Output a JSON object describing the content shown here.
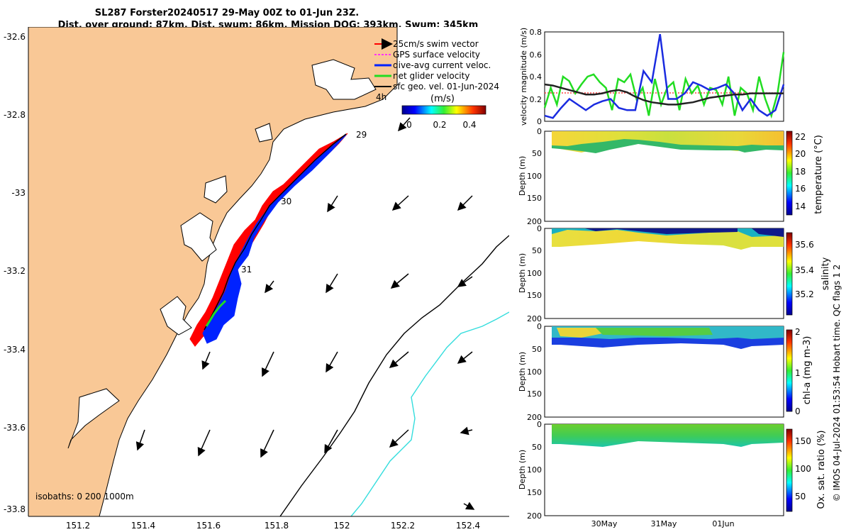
{
  "title": {
    "line1": "SL287 Forster20240517 29-May 00Z to 01-Jun 23Z.",
    "line2": "Dist. over ground: 87km. Dist. swum: 86km. Mission DOG: 393km. Swum: 345km"
  },
  "map": {
    "lat_ticks": [
      "-32.6",
      "-32.8",
      "-33",
      "-33.2",
      "-33.4",
      "-33.6",
      "-33.8"
    ],
    "lon_ticks": [
      "151.2",
      "151.4",
      "151.6",
      "151.8",
      "152",
      "152.2",
      "152.4"
    ],
    "legend": [
      "25cm/s swim vector",
      "GPS surface velocity",
      "dive-avg current veloc.",
      "net glider velocity",
      "sfc geo. vel. 01-Jun-2024"
    ],
    "interval_label": "4h",
    "colorbar_label": "(m/s)",
    "colorbar_ticks": [
      "0",
      "0.2",
      "0.4"
    ],
    "day_labels": [
      "29",
      "30",
      "31"
    ],
    "isobaths_label": "isobaths: 0   200   1000m",
    "colors": {
      "land": "#f9c896",
      "track_red": "#ff0000",
      "track_blue": "#0022ff",
      "track_green": "#22dd22",
      "iso200": "#000000",
      "iso1000": "#33dddd"
    }
  },
  "chart_data": [
    {
      "type": "line",
      "ylabel": "velocity magnitude (m/s)",
      "ylim": [
        0,
        0.8
      ],
      "yticks": [
        "0",
        "0.2",
        "0.4",
        "0.6",
        "0.8"
      ],
      "series": [
        {
          "color": "#22dd22",
          "values": [
            0.12,
            0.3,
            0.15,
            0.4,
            0.36,
            0.25,
            0.33,
            0.4,
            0.42,
            0.35,
            0.3,
            0.1,
            0.38,
            0.35,
            0.42,
            0.2,
            0.3,
            0.05,
            0.38,
            0.15,
            0.3,
            0.35,
            0.1,
            0.38,
            0.25,
            0.32,
            0.15,
            0.3,
            0.28,
            0.15,
            0.4,
            0.05,
            0.3,
            0.25,
            0.1,
            0.4,
            0.2,
            0.05,
            0.25,
            0.62
          ]
        },
        {
          "color": "#1a2be0",
          "values": [
            0.05,
            0.03,
            0.12,
            0.2,
            0.15,
            0.1,
            0.15,
            0.18,
            0.2,
            0.12,
            0.1,
            0.1,
            0.45,
            0.35,
            0.78,
            0.2,
            0.2,
            0.25,
            0.35,
            0.32,
            0.28,
            0.3,
            0.33,
            0.25,
            0.1,
            0.2,
            0.1,
            0.05,
            0.1,
            0.33
          ]
        },
        {
          "color": "#222222",
          "values": [
            0.33,
            0.32,
            0.3,
            0.28,
            0.26,
            0.24,
            0.24,
            0.25,
            0.27,
            0.28,
            0.26,
            0.22,
            0.19,
            0.17,
            0.16,
            0.15,
            0.15,
            0.16,
            0.17,
            0.19,
            0.21,
            0.22,
            0.23,
            0.24,
            0.24,
            0.25,
            0.25,
            0.25,
            0.25,
            0.25
          ]
        }
      ]
    },
    {
      "type": "heatmap",
      "ylabel": "Depth (m)",
      "yticks": [
        "0",
        "50",
        "100",
        "150",
        "200"
      ],
      "cbar_label": "temperature (°C)",
      "cbar_ticks": [
        "14",
        "16",
        "18",
        "20",
        "22"
      ]
    },
    {
      "type": "heatmap",
      "ylabel": "Depth (m)",
      "yticks": [
        "0",
        "50",
        "100",
        "150",
        "200"
      ],
      "cbar_label": "salinity",
      "cbar_ticks": [
        "35.2",
        "35.4",
        "35.6"
      ]
    },
    {
      "type": "heatmap",
      "ylabel": "Depth (m)",
      "yticks": [
        "0",
        "50",
        "100",
        "150",
        "200"
      ],
      "cbar_label": "chl-a (mg m-3)",
      "cbar_ticks": [
        "0",
        "1",
        "2"
      ]
    },
    {
      "type": "heatmap",
      "ylabel": "Depth (m)",
      "yticks": [
        "0",
        "50",
        "100",
        "150",
        "200"
      ],
      "cbar_label": "Ox. sat. ratio (%)",
      "cbar_ticks": [
        "50",
        "100",
        "150"
      ],
      "xticks": [
        "30May",
        "31May",
        "01Jun"
      ]
    }
  ],
  "footer": "© IMOS 04-Jul-2024 01:53:54 Hobart time. QC flags 1  2"
}
